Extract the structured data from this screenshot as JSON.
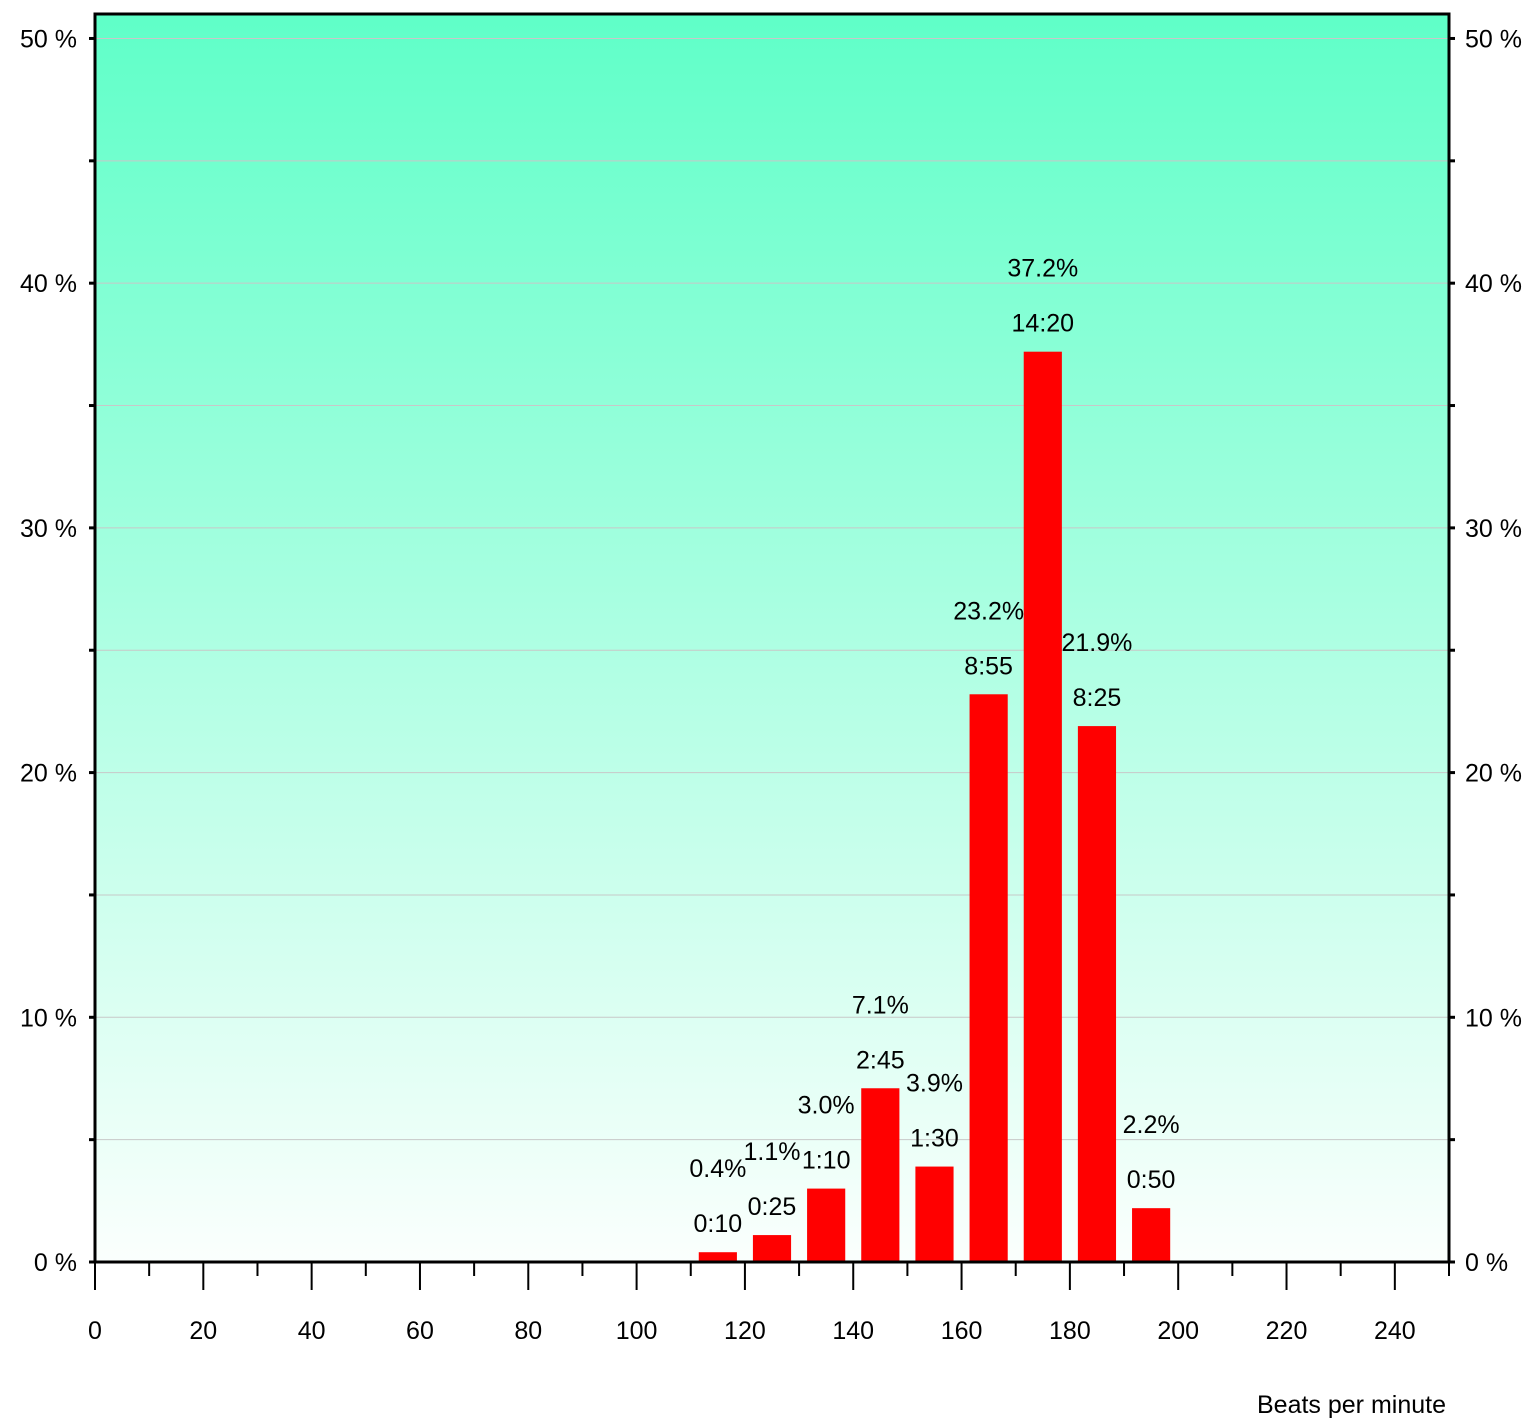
{
  "chart_data": {
    "type": "bar",
    "xlabel": "Beats per minute",
    "ylabel": "",
    "xlim": [
      0,
      250
    ],
    "ylim": [
      0,
      51
    ],
    "x_ticks": [
      "0",
      "20",
      "40",
      "60",
      "80",
      "100",
      "120",
      "140",
      "160",
      "180",
      "200",
      "220",
      "240"
    ],
    "x_tick_values": [
      0,
      20,
      40,
      60,
      80,
      100,
      120,
      140,
      160,
      180,
      200,
      220,
      240
    ],
    "y_ticks": [
      "0 %",
      "10 %",
      "20 %",
      "30 %",
      "40 %",
      "50 %"
    ],
    "y_tick_values": [
      0,
      10,
      20,
      30,
      40,
      50
    ],
    "grid": true,
    "bin_width": 10,
    "bins": [
      {
        "x_start": 110,
        "x_end": 120,
        "value": 0.4,
        "percent_label": "0.4%",
        "time_label": "0:10"
      },
      {
        "x_start": 120,
        "x_end": 130,
        "value": 1.1,
        "percent_label": "1.1%",
        "time_label": "0:25"
      },
      {
        "x_start": 130,
        "x_end": 140,
        "value": 3.0,
        "percent_label": "3.0%",
        "time_label": "1:10"
      },
      {
        "x_start": 140,
        "x_end": 150,
        "value": 7.1,
        "percent_label": "7.1%",
        "time_label": "2:45"
      },
      {
        "x_start": 150,
        "x_end": 160,
        "value": 3.9,
        "percent_label": "3.9%",
        "time_label": "1:30"
      },
      {
        "x_start": 160,
        "x_end": 170,
        "value": 23.2,
        "percent_label": "23.2%",
        "time_label": "8:55"
      },
      {
        "x_start": 170,
        "x_end": 180,
        "value": 37.2,
        "percent_label": "37.2%",
        "time_label": "14:20"
      },
      {
        "x_start": 180,
        "x_end": 190,
        "value": 21.9,
        "percent_label": "21.9%",
        "time_label": "8:25"
      },
      {
        "x_start": 190,
        "x_end": 200,
        "value": 2.2,
        "percent_label": "2.2%",
        "time_label": "0:50"
      }
    ],
    "colors": {
      "bar": "#ff0000",
      "background_top": "#5fffc8",
      "background_bottom": "#fbfffd",
      "gridline": "#c8c8c8",
      "axis": "#000000"
    }
  }
}
